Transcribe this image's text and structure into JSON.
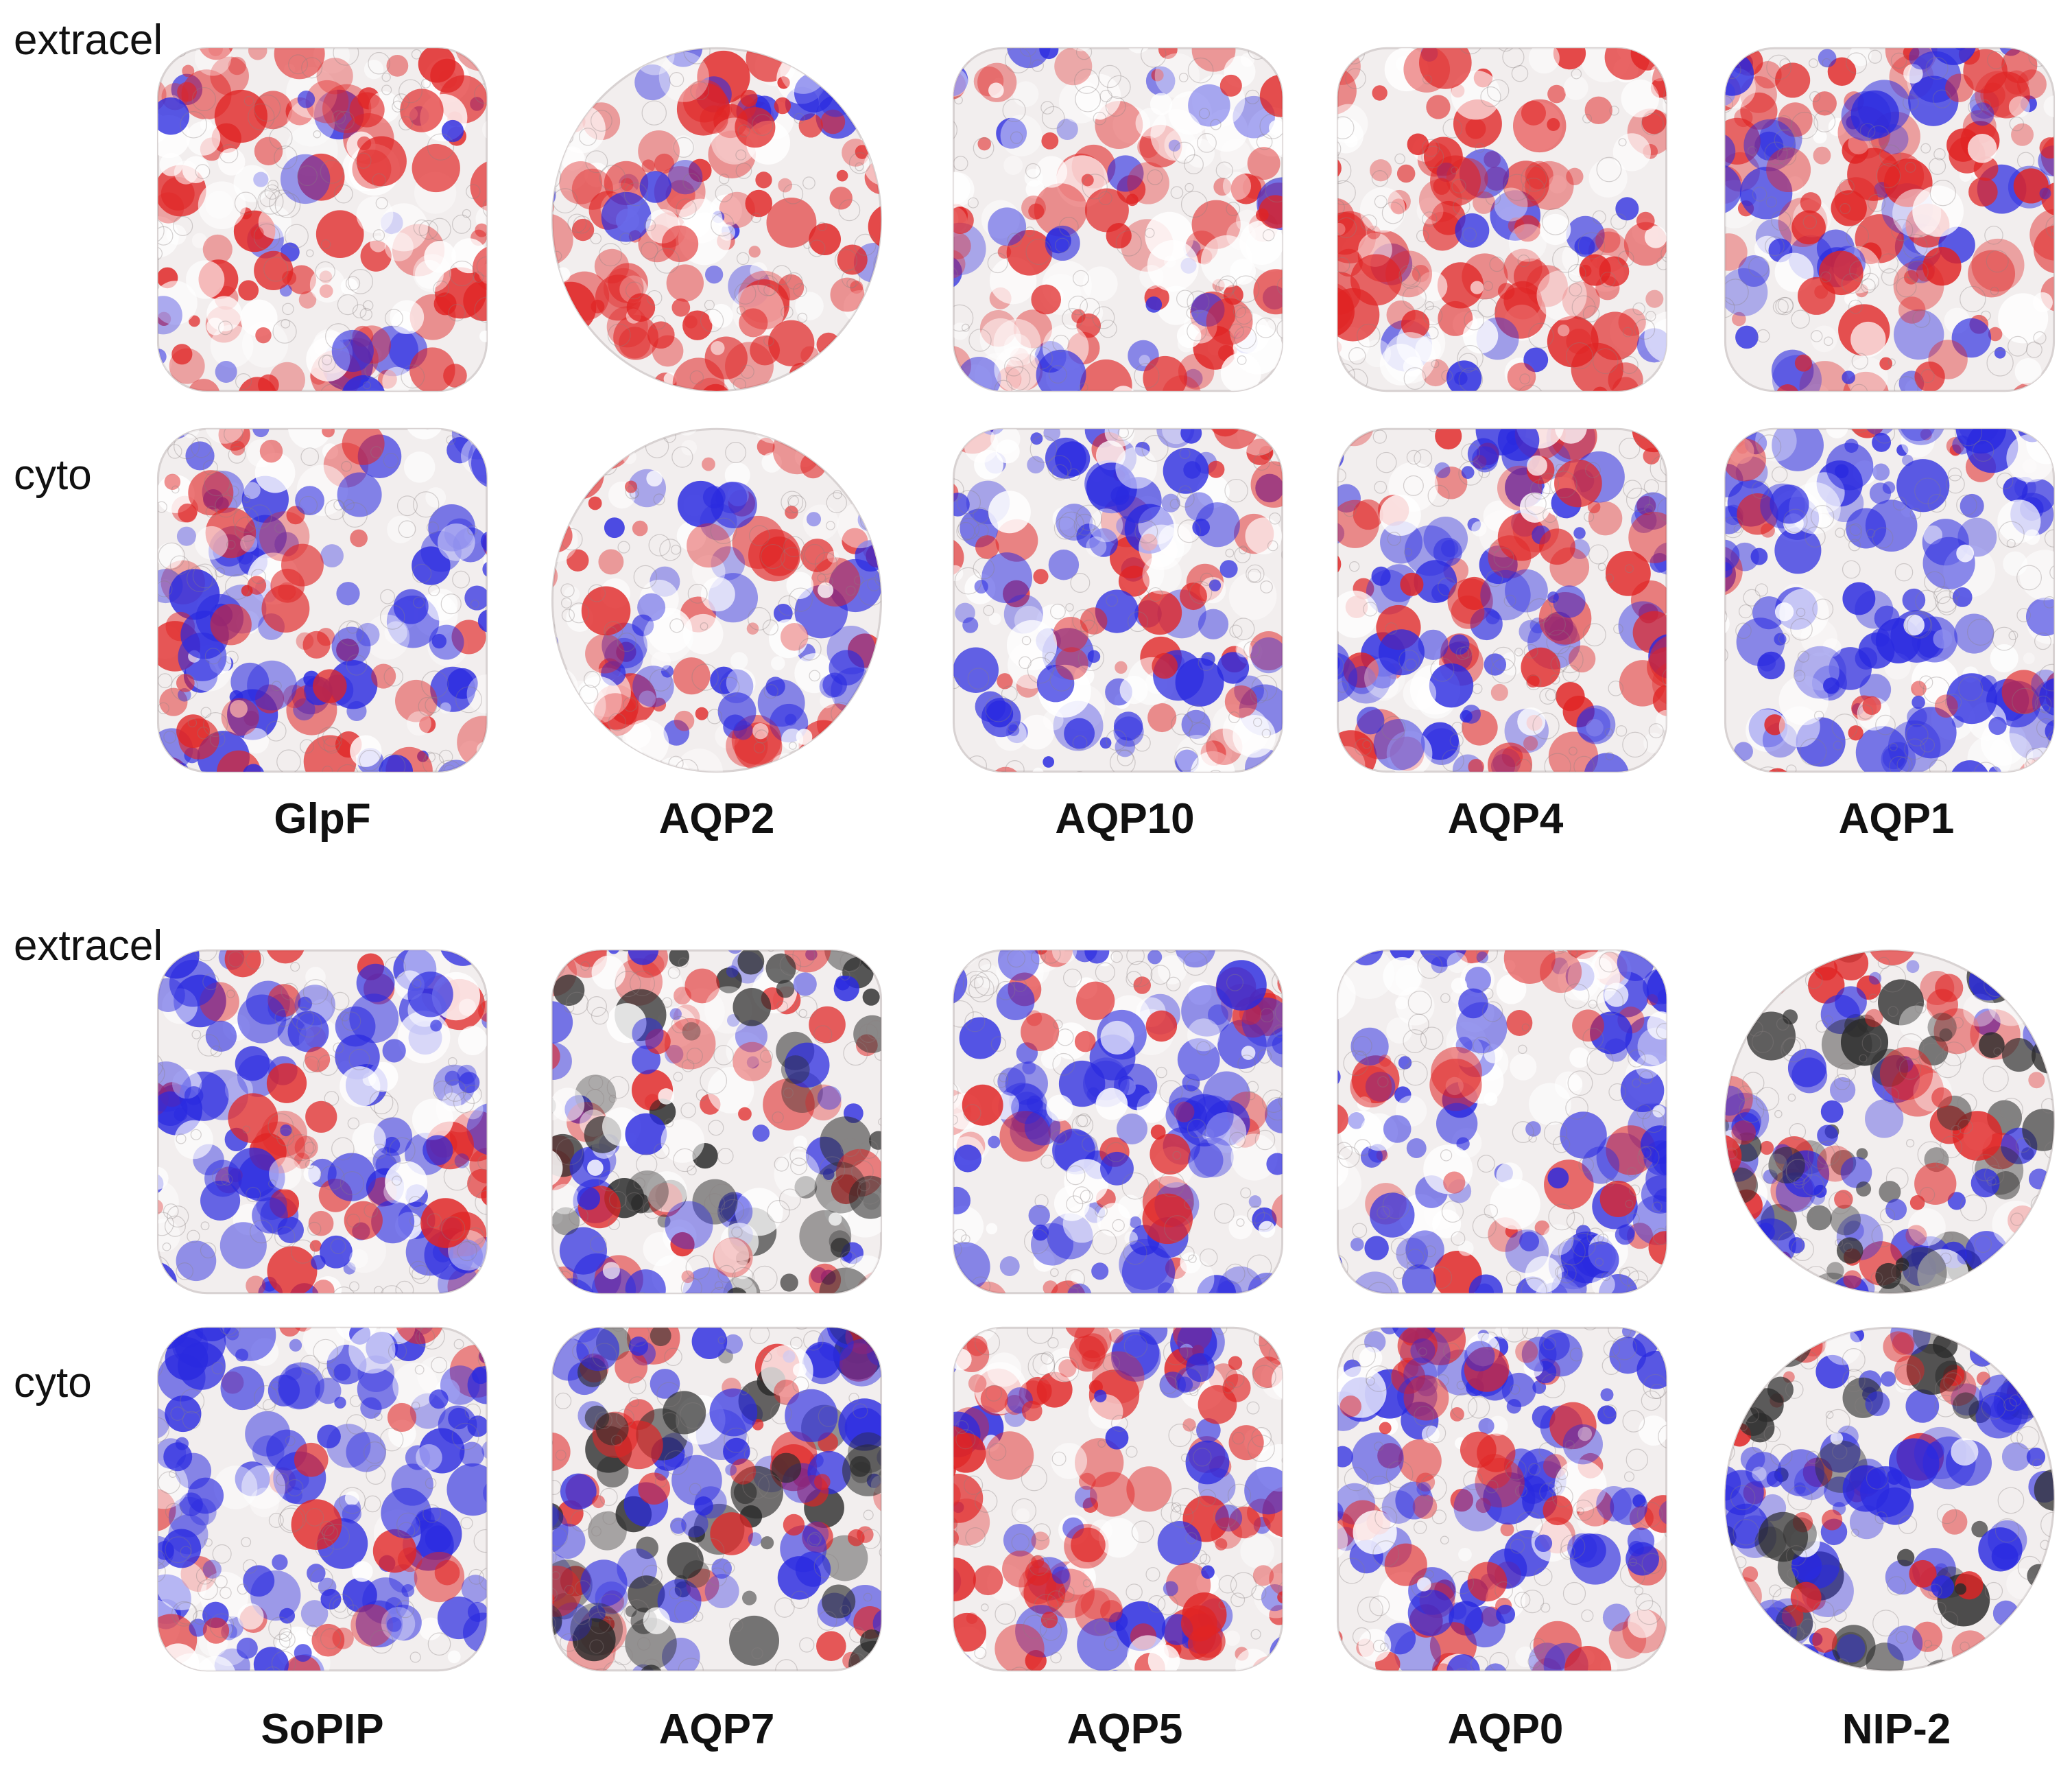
{
  "row_labels": {
    "extracel": "extracel",
    "cyto": "cyto"
  },
  "top_group": {
    "proteins": [
      "GlpF",
      "AQP2",
      "AQP10",
      "AQP4",
      "AQP1"
    ]
  },
  "bottom_group": {
    "proteins": [
      "SoPIP",
      "AQP7",
      "AQP5",
      "AQP0",
      "NIP-2"
    ]
  },
  "colors": {
    "negative": "#e02424",
    "neutral": "#f2eeee",
    "positive": "#2a2ae0",
    "hydrophobic_pore": "#2b2b2b"
  },
  "surfaces": [
    {
      "group": "top",
      "row": "extracel",
      "protein": "GlpF",
      "shape": "square",
      "red": 0.55,
      "blue": 0.12,
      "dark": 0
    },
    {
      "group": "top",
      "row": "extracel",
      "protein": "AQP2",
      "shape": "round",
      "red": 0.6,
      "blue": 0.1,
      "dark": 0
    },
    {
      "group": "top",
      "row": "extracel",
      "protein": "AQP10",
      "shape": "square",
      "red": 0.45,
      "blue": 0.15,
      "dark": 0
    },
    {
      "group": "top",
      "row": "extracel",
      "protein": "AQP4",
      "shape": "square",
      "red": 0.5,
      "blue": 0.12,
      "dark": 0
    },
    {
      "group": "top",
      "row": "extracel",
      "protein": "AQP1",
      "shape": "square",
      "red": 0.5,
      "blue": 0.3,
      "dark": 0
    },
    {
      "group": "top",
      "row": "cyto",
      "protein": "GlpF",
      "shape": "square",
      "red": 0.3,
      "blue": 0.45,
      "dark": 0
    },
    {
      "group": "top",
      "row": "cyto",
      "protein": "AQP2",
      "shape": "round",
      "red": 0.35,
      "blue": 0.3,
      "dark": 0
    },
    {
      "group": "top",
      "row": "cyto",
      "protein": "AQP10",
      "shape": "square",
      "red": 0.2,
      "blue": 0.5,
      "dark": 0
    },
    {
      "group": "top",
      "row": "cyto",
      "protein": "AQP4",
      "shape": "square",
      "red": 0.3,
      "blue": 0.5,
      "dark": 0
    },
    {
      "group": "top",
      "row": "cyto",
      "protein": "AQP1",
      "shape": "square",
      "red": 0.12,
      "blue": 0.55,
      "dark": 0
    },
    {
      "group": "bottom",
      "row": "extracel",
      "protein": "SoPIP",
      "shape": "square",
      "red": 0.25,
      "blue": 0.45,
      "dark": 0
    },
    {
      "group": "bottom",
      "row": "extracel",
      "protein": "AQP7",
      "shape": "square",
      "red": 0.3,
      "blue": 0.45,
      "dark": 0.3
    },
    {
      "group": "bottom",
      "row": "extracel",
      "protein": "AQP5",
      "shape": "square",
      "red": 0.2,
      "blue": 0.5,
      "dark": 0
    },
    {
      "group": "bottom",
      "row": "extracel",
      "protein": "AQP0",
      "shape": "square",
      "red": 0.15,
      "blue": 0.45,
      "dark": 0
    },
    {
      "group": "bottom",
      "row": "extracel",
      "protein": "NIP-2",
      "shape": "round",
      "red": 0.4,
      "blue": 0.5,
      "dark": 0.3
    },
    {
      "group": "bottom",
      "row": "cyto",
      "protein": "SoPIP",
      "shape": "square",
      "red": 0.15,
      "blue": 0.6,
      "dark": 0
    },
    {
      "group": "bottom",
      "row": "cyto",
      "protein": "AQP7",
      "shape": "square",
      "red": 0.45,
      "blue": 0.5,
      "dark": 0.35
    },
    {
      "group": "bottom",
      "row": "cyto",
      "protein": "AQP5",
      "shape": "square",
      "red": 0.5,
      "blue": 0.3,
      "dark": 0
    },
    {
      "group": "bottom",
      "row": "cyto",
      "protein": "AQP0",
      "shape": "square",
      "red": 0.35,
      "blue": 0.45,
      "dark": 0
    },
    {
      "group": "bottom",
      "row": "cyto",
      "protein": "NIP-2",
      "shape": "round",
      "red": 0.3,
      "blue": 0.65,
      "dark": 0.25
    }
  ]
}
